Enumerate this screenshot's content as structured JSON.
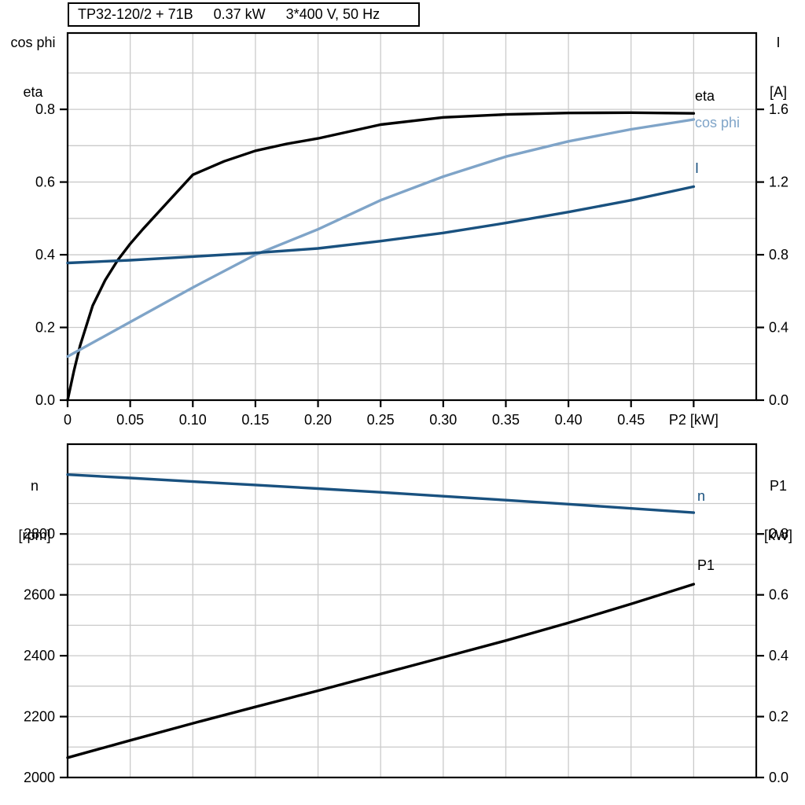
{
  "chart_data": [
    {
      "type": "line",
      "title_parts": [
        "TP32-120/2 + 71B",
        "0.37 kW",
        "3*400 V, 50 Hz"
      ],
      "x_axis": {
        "label": "P2 [kW]",
        "min": 0,
        "max": 0.55,
        "label_at": 0.5,
        "tick_values": [
          0,
          0.05,
          0.1,
          0.15,
          0.2,
          0.25,
          0.3,
          0.35,
          0.4,
          0.45
        ],
        "tick_labels": [
          "0",
          "0.05",
          "0.10",
          "0.15",
          "0.20",
          "0.25",
          "0.30",
          "0.35",
          "0.40",
          "0.45"
        ],
        "tick_marks": [
          0,
          0.05,
          0.1,
          0.15,
          0.2,
          0.25,
          0.3,
          0.35,
          0.4,
          0.45,
          0.5
        ],
        "grid_values": [
          0.05,
          0.1,
          0.15,
          0.2,
          0.25,
          0.3,
          0.35,
          0.4,
          0.45,
          0.5
        ]
      },
      "left_axis": {
        "title_lines": [
          "cos phi",
          "eta"
        ],
        "min": 0,
        "max": 1.01,
        "tick_values": [
          0.0,
          0.2,
          0.4,
          0.6,
          0.8
        ],
        "tick_labels": [
          "0.0",
          "0.2",
          "0.4",
          "0.6",
          "0.8"
        ],
        "grid_values": [
          0.1,
          0.2,
          0.3,
          0.4,
          0.5,
          0.6,
          0.7,
          0.8,
          0.9
        ]
      },
      "right_axis": {
        "title_lines": [
          "I",
          "[A]"
        ],
        "min": 0,
        "max": 2.02,
        "tick_values": [
          0.0,
          0.4,
          0.8,
          1.2,
          1.6
        ],
        "tick_labels": [
          "0.0",
          "0.4",
          "0.8",
          "1.2",
          "1.6"
        ]
      },
      "series": [
        {
          "name": "eta",
          "color": "#000000",
          "axis": "left",
          "x": [
            0,
            0.005,
            0.01,
            0.02,
            0.03,
            0.04,
            0.05,
            0.06,
            0.08,
            0.1,
            0.125,
            0.15,
            0.175,
            0.2,
            0.25,
            0.3,
            0.35,
            0.4,
            0.45,
            0.5
          ],
          "y": [
            0,
            0.08,
            0.15,
            0.26,
            0.33,
            0.385,
            0.43,
            0.47,
            0.545,
            0.62,
            0.657,
            0.686,
            0.705,
            0.72,
            0.758,
            0.778,
            0.786,
            0.79,
            0.791,
            0.789
          ]
        },
        {
          "name": "cos phi",
          "color": "#7fa4c8",
          "axis": "left",
          "x": [
            0,
            0.05,
            0.1,
            0.15,
            0.2,
            0.25,
            0.3,
            0.35,
            0.4,
            0.45,
            0.5
          ],
          "y": [
            0.12,
            0.215,
            0.31,
            0.4,
            0.47,
            0.55,
            0.615,
            0.67,
            0.712,
            0.745,
            0.772
          ]
        },
        {
          "name": "I",
          "color": "#19517f",
          "axis": "right",
          "x": [
            0,
            0.05,
            0.1,
            0.15,
            0.2,
            0.25,
            0.3,
            0.35,
            0.4,
            0.45,
            0.5
          ],
          "y": [
            0.755,
            0.77,
            0.79,
            0.81,
            0.835,
            0.875,
            0.92,
            0.975,
            1.035,
            1.1,
            1.175
          ]
        }
      ]
    },
    {
      "type": "line",
      "x_axis": {
        "label": "",
        "min": 0,
        "max": 0.55,
        "tick_values": [],
        "tick_labels": [],
        "tick_marks": [],
        "grid_values": [
          0.05,
          0.1,
          0.15,
          0.2,
          0.25,
          0.3,
          0.35,
          0.4,
          0.45,
          0.5
        ]
      },
      "left_axis": {
        "title_lines": [
          "n",
          "[rpm]"
        ],
        "min": 2000,
        "max": 3095,
        "tick_values": [
          2000,
          2200,
          2400,
          2600,
          2800
        ],
        "tick_labels": [
          "2000",
          "2200",
          "2400",
          "2600",
          "2800"
        ],
        "grid_values": [
          2100,
          2200,
          2300,
          2400,
          2500,
          2600,
          2700,
          2800,
          2900,
          3000
        ]
      },
      "right_axis": {
        "title_lines": [
          "P1",
          "[kW]"
        ],
        "min": 0,
        "max": 1.095,
        "tick_values": [
          0.0,
          0.2,
          0.4,
          0.6,
          0.8
        ],
        "tick_labels": [
          "0.0",
          "0.2",
          "0.4",
          "0.6",
          "0.8"
        ]
      },
      "series": [
        {
          "name": "n",
          "color": "#19517f",
          "axis": "left",
          "x": [
            0,
            0.05,
            0.1,
            0.15,
            0.2,
            0.25,
            0.3,
            0.35,
            0.4,
            0.45,
            0.5
          ],
          "y": [
            2995,
            2984,
            2972,
            2961,
            2949,
            2937,
            2924,
            2911,
            2898,
            2884,
            2870
          ]
        },
        {
          "name": "P1",
          "color": "#000000",
          "axis": "right",
          "x": [
            0,
            0.05,
            0.1,
            0.15,
            0.2,
            0.25,
            0.3,
            0.35,
            0.4,
            0.45,
            0.5
          ],
          "y": [
            0.065,
            0.122,
            0.178,
            0.232,
            0.285,
            0.34,
            0.395,
            0.45,
            0.508,
            0.57,
            0.635
          ]
        }
      ]
    }
  ],
  "colors": {
    "curve_dark_blue": "#19517f",
    "curve_light_blue": "#7fa4c8",
    "curve_black": "#000000",
    "gridline": "#cacaca",
    "axis": "#000000"
  }
}
